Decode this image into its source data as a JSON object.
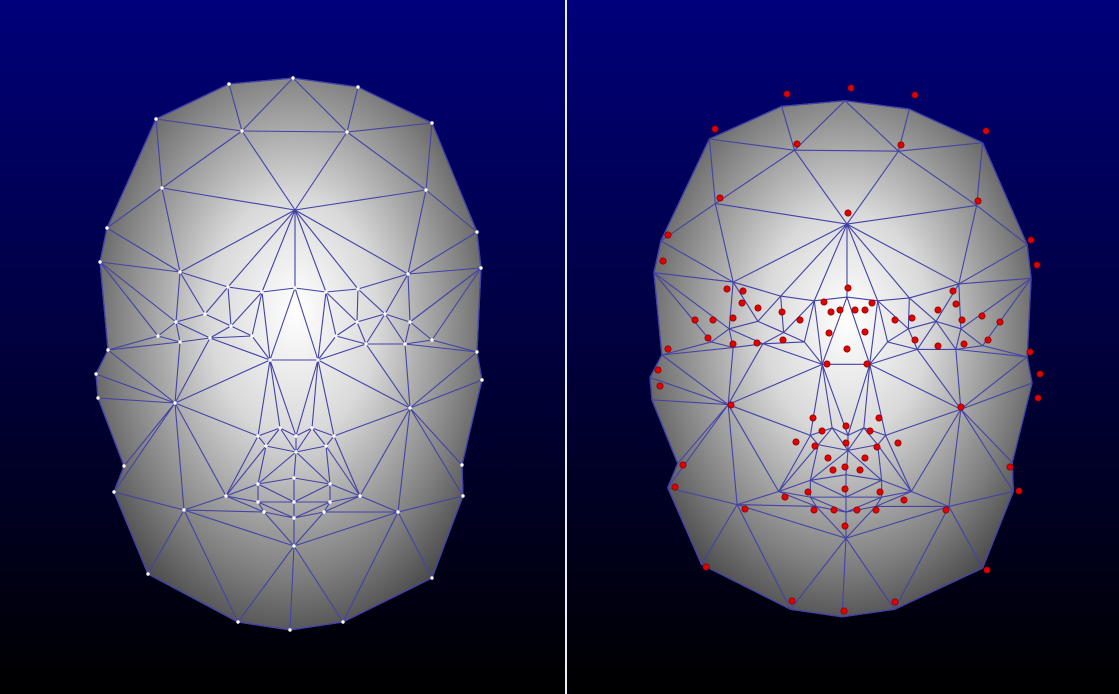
{
  "scene": {
    "background_top": "#00007a",
    "background_bottom": "#000000",
    "divider_color": "#e9edf6"
  },
  "panels": [
    {
      "name": "face-mesh-left",
      "vertex_style": "white-dot",
      "vertex_color": "#ffffff",
      "edge_color": "#4242a8"
    },
    {
      "name": "face-mesh-right",
      "vertex_style": "red-dot",
      "vertex_color": "#e00000",
      "edge_color": "#4242a8"
    }
  ],
  "icons": [
    "face-wireframe-left",
    "face-wireframe-right"
  ]
}
